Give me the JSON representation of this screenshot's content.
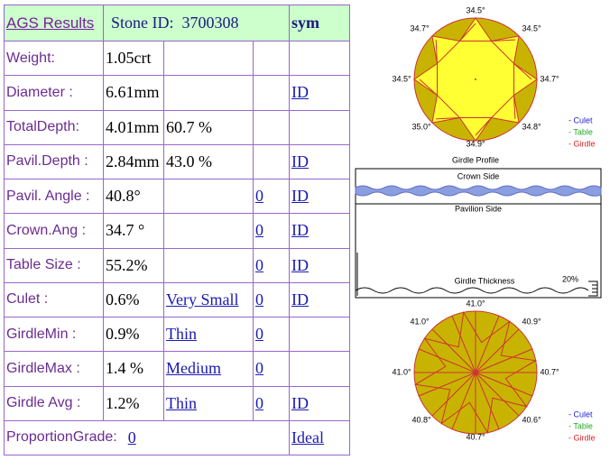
{
  "table": {
    "header": {
      "title": "AGS Results",
      "stone_id": "Stone ID:  3700308",
      "sym": "sym"
    },
    "rows": [
      {
        "label": "Weight:",
        "value": "1.05crt"
      },
      {
        "label": "Diameter :",
        "value": "6.61mm",
        "sym": "ID"
      },
      {
        "label": "TotalDepth:",
        "value": "4.01mm",
        "detail": "60.7 %"
      },
      {
        "label": "Pavil.Depth :",
        "value": "2.84mm",
        "detail": "43.0 %",
        "sym": "ID"
      },
      {
        "label": "Pavil. Angle :",
        "value": "40.8°",
        "zero": "0",
        "sym": "ID"
      },
      {
        "label": "Crown.Ang :",
        "value": "34.7 °",
        "zero": "0",
        "sym": "ID"
      },
      {
        "label": "Table Size :",
        "value": "55.2%",
        "zero": "0",
        "sym": "ID"
      },
      {
        "label": "Culet :",
        "value": "0.6%",
        "detail": "Very Small",
        "zero": "0",
        "sym": "ID"
      },
      {
        "label": "GirdleMin :",
        "value": "0.9%",
        "detail": "Thin",
        "zero": "0"
      },
      {
        "label": "GirdleMax :",
        "value": "1.4 %",
        "detail": "Medium",
        "zero": "0"
      },
      {
        "label": "Girdle Avg :",
        "value": "1.2%",
        "detail": "Thin",
        "zero": "0",
        "sym": "ID"
      },
      {
        "label": "ProportionGrade:",
        "grade": "0",
        "sym": "Ideal"
      }
    ]
  },
  "crown_diagram": {
    "angles": [
      "34.5°",
      "34.7°",
      "34.5°",
      "34.5°",
      "34.7°",
      "35.0°",
      "34.8°",
      "34.9°"
    ],
    "legend": [
      "- Culet",
      "- Table",
      "- Girdle"
    ],
    "caption": "Girdle Profile"
  },
  "girdle_profile": {
    "crown_side": "Crown Side",
    "pavilion_side": "Pavilion Side",
    "girdle_thickness": "Girdle Thickness",
    "scale": "20%"
  },
  "pavilion_diagram": {
    "angles": [
      "41.0°",
      "41.0°",
      "40.9°",
      "41.0°",
      "40.7°",
      "40.8°",
      "40.6°",
      "40.7°"
    ],
    "legend": [
      "- Culet",
      "- Table",
      "- Girdle"
    ]
  }
}
